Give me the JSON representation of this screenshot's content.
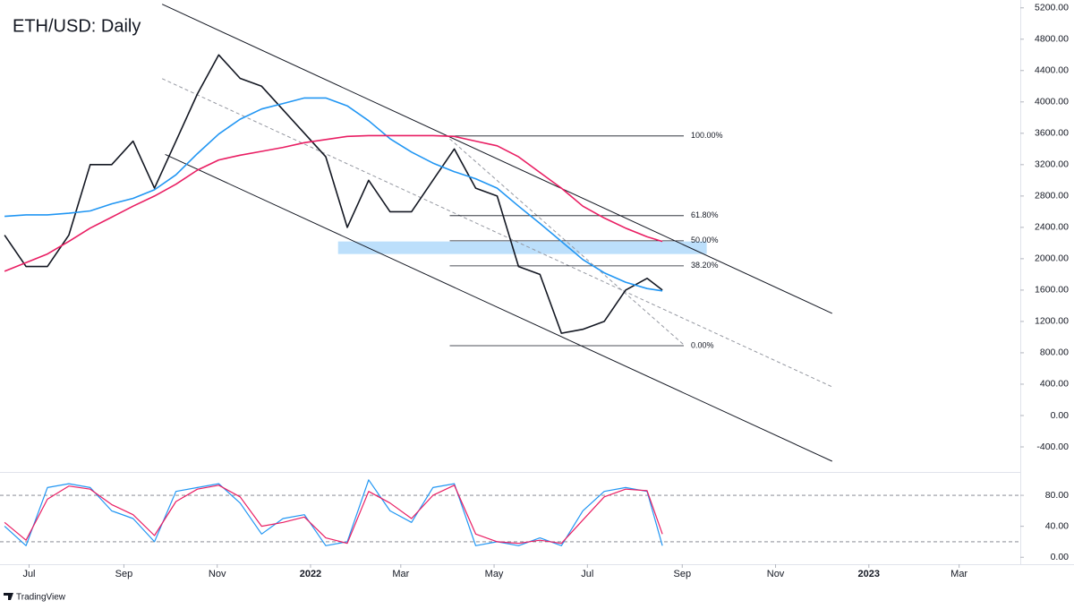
{
  "chart_data": [
    {
      "type": "line",
      "title": "ETH/USD: Daily",
      "xlim": [
        "2021-06-12",
        "2023-04-10"
      ],
      "xticks": [
        {
          "value": "2021-07-01",
          "label": "Jul"
        },
        {
          "value": "2021-09-01",
          "label": "Sep"
        },
        {
          "value": "2021-11-01",
          "label": "Nov"
        },
        {
          "value": "2022-01-01",
          "label": "2022"
        },
        {
          "value": "2022-03-01",
          "label": "Mar"
        },
        {
          "value": "2022-05-01",
          "label": "May"
        },
        {
          "value": "2022-07-01",
          "label": "Jul"
        },
        {
          "value": "2022-09-01",
          "label": "Sep"
        },
        {
          "value": "2022-11-01",
          "label": "Nov"
        },
        {
          "value": "2023-01-01",
          "label": "2023"
        },
        {
          "value": "2023-03-01",
          "label": "Mar"
        }
      ],
      "ylim": [
        -720,
        5300
      ],
      "yticks": [
        {
          "value": -400,
          "label": "-400.00"
        },
        {
          "value": 0,
          "label": "0.00"
        },
        {
          "value": 400,
          "label": "400.00"
        },
        {
          "value": 800,
          "label": "800.00"
        },
        {
          "value": 1200,
          "label": "1200.00"
        },
        {
          "value": 1600,
          "label": "1600.00"
        },
        {
          "value": 2000,
          "label": "2000.00"
        },
        {
          "value": 2400,
          "label": "2400.00"
        },
        {
          "value": 2800,
          "label": "2800.00"
        },
        {
          "value": 3200,
          "label": "3200.00"
        },
        {
          "value": 3600,
          "label": "3600.00"
        },
        {
          "value": 4000,
          "label": "4000.00"
        },
        {
          "value": 4400,
          "label": "4400.00"
        },
        {
          "value": 4800,
          "label": "4800.00"
        },
        {
          "value": 5200,
          "label": "5200.00"
        }
      ],
      "grid": false,
      "x": [
        "2021-06-15",
        "2021-06-29",
        "2021-07-13",
        "2021-07-27",
        "2021-08-10",
        "2021-08-24",
        "2021-09-07",
        "2021-09-21",
        "2021-10-05",
        "2021-10-19",
        "2021-11-02",
        "2021-11-16",
        "2021-11-30",
        "2021-12-14",
        "2021-12-28",
        "2022-01-11",
        "2022-01-25",
        "2022-02-08",
        "2022-02-22",
        "2022-03-08",
        "2022-03-22",
        "2022-04-05",
        "2022-04-19",
        "2022-05-03",
        "2022-05-17",
        "2022-05-31",
        "2022-06-14",
        "2022-06-28",
        "2022-07-12",
        "2022-07-26",
        "2022-08-09",
        "2022-08-19"
      ],
      "series": [
        {
          "color": "#131722",
          "width": 1.6,
          "values": [
            2300,
            1900,
            1900,
            2300,
            3200,
            3200,
            3500,
            2900,
            3500,
            4100,
            4600,
            4300,
            4200,
            3900,
            3600,
            3300,
            2400,
            3000,
            2600,
            2600,
            3000,
            3400,
            2900,
            2800,
            1900,
            1800,
            1050,
            1100,
            1200,
            1600,
            1750,
            1600
          ]
        },
        {
          "color": "#2196f3",
          "width": 1.6,
          "values": [
            2540,
            2560,
            2560,
            2580,
            2610,
            2700,
            2770,
            2880,
            3070,
            3340,
            3590,
            3780,
            3910,
            3980,
            4050,
            4050,
            3950,
            3760,
            3530,
            3360,
            3220,
            3110,
            3020,
            2900,
            2670,
            2450,
            2220,
            1990,
            1820,
            1700,
            1620,
            1590
          ]
        },
        {
          "color": "#e91e63",
          "width": 1.6,
          "values": [
            1840,
            1950,
            2060,
            2220,
            2390,
            2530,
            2670,
            2800,
            2950,
            3130,
            3260,
            3320,
            3370,
            3420,
            3480,
            3520,
            3560,
            3570,
            3570,
            3570,
            3570,
            3560,
            3500,
            3440,
            3300,
            3100,
            2900,
            2670,
            2520,
            2390,
            2280,
            2220
          ]
        }
      ],
      "trendlines": [
        {
          "x": [
            "2021-09-26",
            "2022-12-08"
          ],
          "y": [
            5246,
            1303
          ],
          "dashed": false
        },
        {
          "x": [
            "2021-09-28",
            "2022-12-08"
          ],
          "y": [
            3330,
            -583
          ],
          "dashed": false
        },
        {
          "x": [
            "2021-09-26",
            "2022-12-08"
          ],
          "y": [
            4297,
            366
          ],
          "dashed": true
        },
        {
          "x": [
            "2022-04-02",
            "2022-09-02"
          ],
          "y": [
            3530,
            903
          ],
          "dashed": true
        }
      ],
      "zone": {
        "x": [
          "2022-01-19",
          "2022-09-17"
        ],
        "y": [
          2060,
          2220
        ],
        "color": "#90caf9"
      },
      "fibonacci": {
        "x": [
          "2022-04-02",
          "2022-09-02"
        ],
        "levels": [
          {
            "ratio": 100,
            "label": "100.00%",
            "price": 3566
          },
          {
            "ratio": 61.8,
            "label": "61.80%",
            "price": 2549
          },
          {
            "ratio": 50,
            "label": "50.00%",
            "price": 2229
          },
          {
            "ratio": 38.2,
            "label": "38.20%",
            "price": 1909
          },
          {
            "ratio": 0,
            "label": "0.00%",
            "price": 891
          }
        ]
      }
    },
    {
      "type": "line",
      "ylim": [
        -9,
        109
      ],
      "yticks": [
        {
          "value": 0,
          "label": "0.00"
        },
        {
          "value": 40,
          "label": "40.00"
        },
        {
          "value": 80,
          "label": "80.00"
        }
      ],
      "bands": [
        20,
        80
      ],
      "x": [
        "2021-06-15",
        "2021-06-29",
        "2021-07-13",
        "2021-07-27",
        "2021-08-10",
        "2021-08-24",
        "2021-09-07",
        "2021-09-21",
        "2021-10-05",
        "2021-10-19",
        "2021-11-02",
        "2021-11-16",
        "2021-11-30",
        "2021-12-14",
        "2021-12-28",
        "2022-01-11",
        "2022-01-25",
        "2022-02-08",
        "2022-02-22",
        "2022-03-08",
        "2022-03-22",
        "2022-04-05",
        "2022-04-19",
        "2022-05-03",
        "2022-05-17",
        "2022-05-31",
        "2022-06-14",
        "2022-06-28",
        "2022-07-12",
        "2022-07-26",
        "2022-08-09",
        "2022-08-19"
      ],
      "series": [
        {
          "color": "#2196f3",
          "width": 1.2,
          "values": [
            40,
            15,
            90,
            95,
            90,
            60,
            50,
            20,
            85,
            90,
            95,
            70,
            30,
            50,
            55,
            15,
            20,
            100,
            60,
            45,
            90,
            95,
            15,
            20,
            15,
            25,
            15,
            60,
            85,
            90,
            85,
            15
          ]
        },
        {
          "color": "#e91e63",
          "width": 1.2,
          "values": [
            45,
            22,
            75,
            92,
            88,
            68,
            55,
            28,
            72,
            88,
            93,
            78,
            40,
            45,
            52,
            25,
            18,
            85,
            70,
            50,
            80,
            93,
            30,
            20,
            18,
            22,
            18,
            48,
            78,
            88,
            86,
            30
          ]
        }
      ]
    }
  ],
  "footer": "TradingView"
}
